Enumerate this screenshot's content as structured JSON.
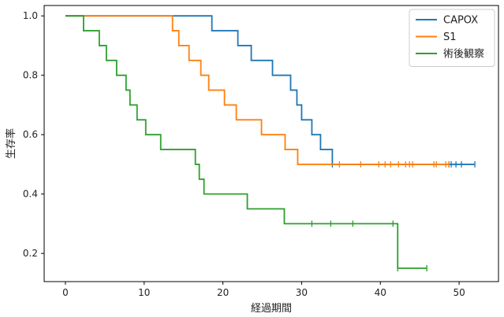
{
  "chart_data": {
    "type": "line",
    "subtype": "kaplan-meier-step",
    "xlabel": "経過期間",
    "ylabel": "生存率",
    "xlim": [
      -2.7,
      55
    ],
    "ylim": [
      0.105,
      1.035
    ],
    "xticks": [
      0,
      10,
      20,
      30,
      40,
      50
    ],
    "yticks": [
      0.2,
      0.4,
      0.6,
      0.8,
      1.0
    ],
    "xtick_labels": [
      "0",
      "10",
      "20",
      "30",
      "40",
      "50"
    ],
    "ytick_labels": [
      "0.2",
      "0.4",
      "0.6",
      "0.8",
      "1.0"
    ],
    "grid": false,
    "legend_position": "top-right",
    "series": [
      {
        "name": "CAPOX",
        "color": "#1f77b4",
        "steps": [
          [
            0,
            1.0
          ],
          [
            18.6,
            0.95
          ],
          [
            21.9,
            0.9
          ],
          [
            23.6,
            0.85
          ],
          [
            26.3,
            0.8
          ],
          [
            28.6,
            0.75
          ],
          [
            29.4,
            0.7
          ],
          [
            30.0,
            0.65
          ],
          [
            31.3,
            0.6
          ],
          [
            32.4,
            0.55
          ],
          [
            33.9,
            0.5
          ]
        ],
        "end_x": 52.0,
        "censored": [
          33.9,
          48.7,
          49.0,
          49.6,
          50.3,
          52.0
        ]
      },
      {
        "name": "S1",
        "color": "#ff7f0e",
        "steps": [
          [
            0,
            1.0
          ],
          [
            13.6,
            0.95
          ],
          [
            14.4,
            0.9
          ],
          [
            15.7,
            0.85
          ],
          [
            17.2,
            0.8
          ],
          [
            18.2,
            0.75
          ],
          [
            20.2,
            0.7
          ],
          [
            21.7,
            0.65
          ],
          [
            24.9,
            0.6
          ],
          [
            27.9,
            0.55
          ],
          [
            29.5,
            0.5
          ]
        ],
        "end_x": 48.7,
        "censored": [
          34.8,
          37.5,
          39.8,
          40.6,
          41.3,
          42.3,
          43.2,
          43.7,
          44.1,
          46.8,
          47.1,
          48.3,
          48.7
        ]
      },
      {
        "name": "術後観察",
        "color": "#2ca02c",
        "steps": [
          [
            0,
            1.0
          ],
          [
            2.3,
            0.95
          ],
          [
            4.3,
            0.9
          ],
          [
            5.2,
            0.85
          ],
          [
            6.5,
            0.8
          ],
          [
            7.7,
            0.75
          ],
          [
            8.2,
            0.7
          ],
          [
            9.1,
            0.65
          ],
          [
            10.2,
            0.6
          ],
          [
            12.1,
            0.55
          ],
          [
            16.5,
            0.5
          ],
          [
            17.0,
            0.45
          ],
          [
            17.6,
            0.4
          ],
          [
            23.1,
            0.35
          ],
          [
            27.8,
            0.3
          ],
          [
            42.2,
            0.15
          ]
        ],
        "end_x": 45.9,
        "censored": [
          31.3,
          33.7,
          36.5,
          41.6,
          42.2,
          45.9
        ]
      }
    ]
  }
}
